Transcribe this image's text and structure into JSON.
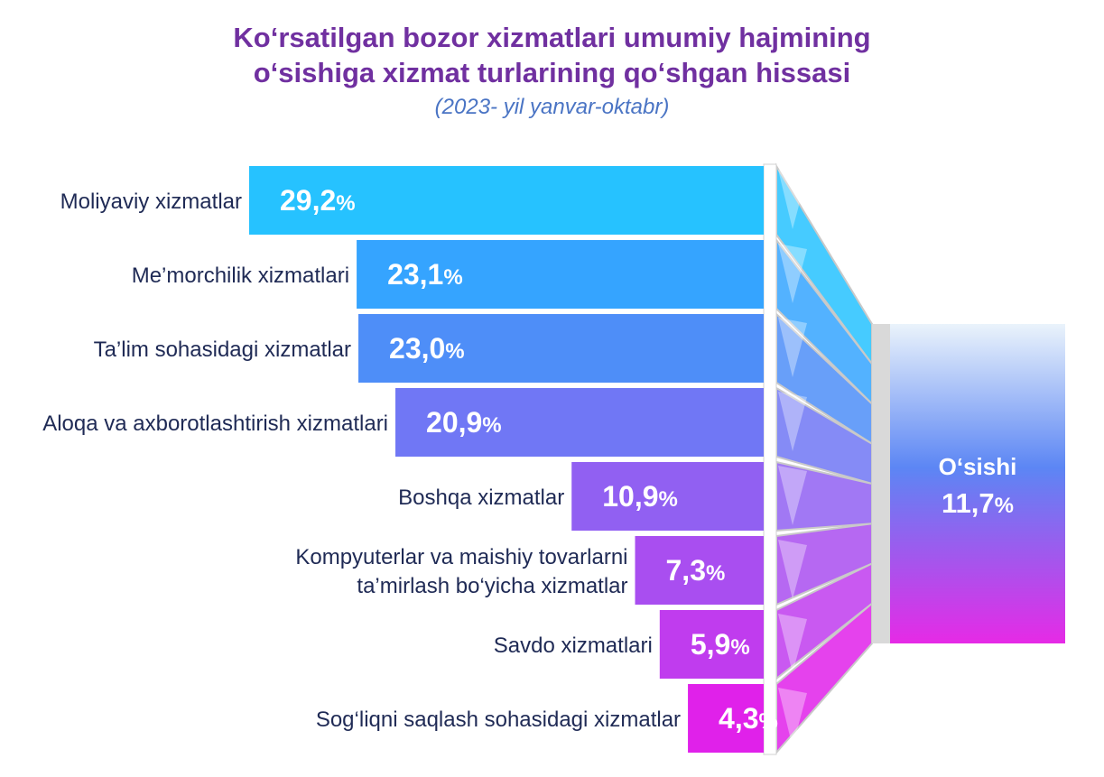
{
  "chart_data": {
    "type": "bar",
    "orientation": "horizontal",
    "title_line1": "Ko‘rsatilgan bozor xizmatlari umumiy hajmining",
    "title_line2": "o‘sishiga xizmat turlarining qo‘shgan hissasi",
    "subtitle": "(2023- yil yanvar-oktabr)",
    "unit": "%",
    "bars": [
      {
        "label": [
          "Moliyaviy xizmatlar"
        ],
        "value": 29.2,
        "display": "29,2",
        "color": "#26c2ff"
      },
      {
        "label": [
          "Me’morchilik xizmatlari"
        ],
        "value": 23.1,
        "display": "23,1",
        "color": "#35a4ff"
      },
      {
        "label": [
          "Ta’lim sohasidagi xizmatlar"
        ],
        "value": 23.0,
        "display": "23,0",
        "color": "#4e8ef8"
      },
      {
        "label": [
          "Aloqa va axborotlashtirish xizmatlari"
        ],
        "value": 20.9,
        "display": "20,9",
        "color": "#7077f5"
      },
      {
        "label": [
          "Boshqa xizmatlar"
        ],
        "value": 10.9,
        "display": "10,9",
        "color": "#9160f2"
      },
      {
        "label": [
          "Kompyuterlar va maishiy tovarlarni",
          "ta’mirlash bo‘yicha  xizmatlar"
        ],
        "value": 7.3,
        "display": "7,3",
        "color": "#a94ef0"
      },
      {
        "label": [
          "Savdo xizmatlari"
        ],
        "value": 5.9,
        "display": "5,9",
        "color": "#c03cee"
      },
      {
        "label": [
          "Sog‘liqni saqlash sohasidagi xizmatlar"
        ],
        "value": 4.3,
        "display": "4,3",
        "color": "#e021ea"
      }
    ],
    "total": {
      "label": "O‘sishi",
      "value": 11.7,
      "display": "11,7"
    }
  }
}
